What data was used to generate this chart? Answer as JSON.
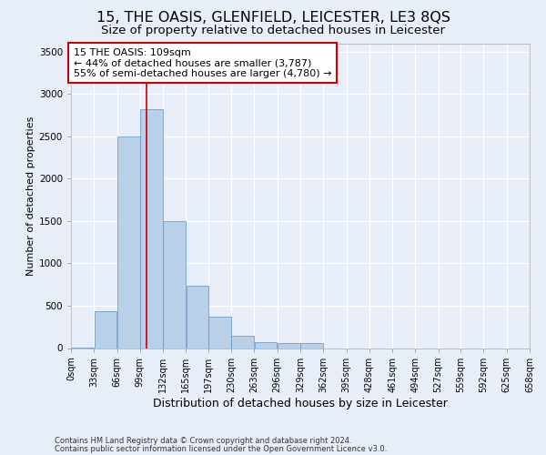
{
  "title": "15, THE OASIS, GLENFIELD, LEICESTER, LE3 8QS",
  "subtitle": "Size of property relative to detached houses in Leicester",
  "xlabel": "Distribution of detached houses by size in Leicester",
  "ylabel": "Number of detached properties",
  "footer_line1": "Contains HM Land Registry data © Crown copyright and database right 2024.",
  "footer_line2": "Contains public sector information licensed under the Open Government Licence v3.0.",
  "annotation_line1": "15 THE OASIS: 109sqm",
  "annotation_line2": "← 44% of detached houses are smaller (3,787)",
  "annotation_line3": "55% of semi-detached houses are larger (4,780) →",
  "bar_color": "#b8d0e8",
  "bar_edge_color": "#6090c0",
  "red_line_x": 109,
  "annotation_box_color": "#ffffff",
  "annotation_box_edge": "#cc0000",
  "bin_edges": [
    0,
    33,
    66,
    99,
    132,
    165,
    197,
    230,
    263,
    296,
    329,
    362,
    395,
    428,
    461,
    494,
    527,
    559,
    592,
    625,
    658
  ],
  "bar_heights": [
    10,
    430,
    2500,
    2820,
    1500,
    740,
    370,
    150,
    75,
    60,
    55,
    0,
    0,
    0,
    0,
    0,
    0,
    0,
    0,
    0
  ],
  "ylim": [
    0,
    3600
  ],
  "yticks": [
    0,
    500,
    1000,
    1500,
    2000,
    2500,
    3000,
    3500
  ],
  "background_color": "#e8eef8",
  "plot_background": "#e8eef8",
  "grid_color": "#ffffff",
  "title_fontsize": 11.5,
  "subtitle_fontsize": 9.5,
  "tick_label_fontsize": 7,
  "ylabel_fontsize": 8,
  "xlabel_fontsize": 9,
  "annotation_fontsize": 8,
  "footer_fontsize": 6
}
